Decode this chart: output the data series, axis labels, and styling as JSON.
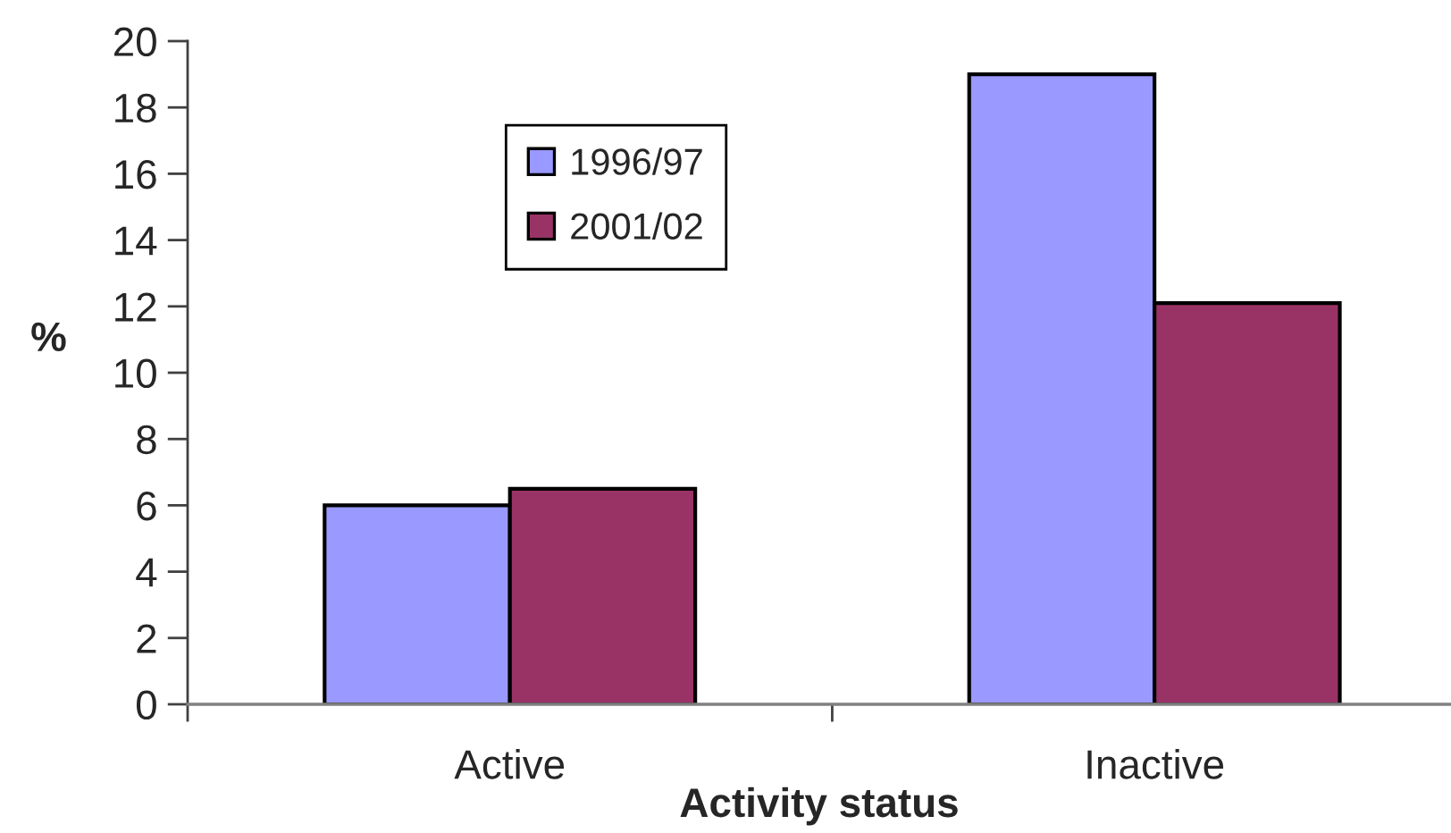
{
  "chart_data": {
    "type": "bar",
    "xlabel": "Activity status",
    "ylabel": "%",
    "categories": [
      "Active",
      "Inactive"
    ],
    "series": [
      {
        "name": "1996/97",
        "color": "#9999ff",
        "values": [
          6,
          19
        ]
      },
      {
        "name": "2001/02",
        "color": "#993366",
        "values": [
          6.5,
          12.1
        ]
      }
    ],
    "ylim": [
      0,
      20
    ],
    "yticks": [
      0,
      2,
      4,
      6,
      8,
      10,
      12,
      14,
      16,
      18,
      20
    ],
    "legend": "top left"
  }
}
